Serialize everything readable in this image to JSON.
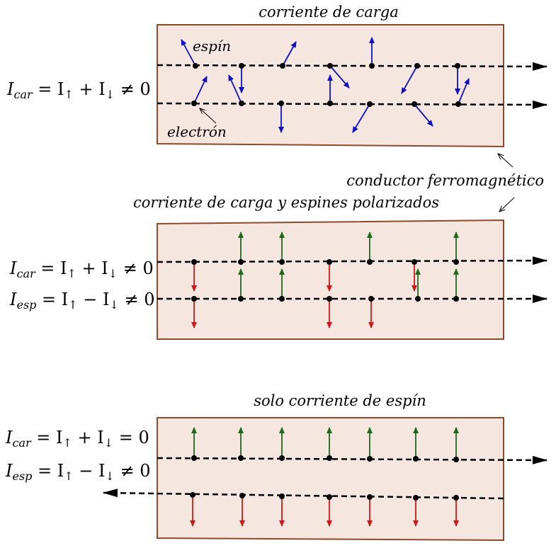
{
  "panel1": {
    "title": "corriente de carga",
    "spin_label": "espín",
    "electron_label": "electrón",
    "equation": {
      "main": "I",
      "sub": "car",
      "rest1": " = I",
      "up": "↑",
      "rest2": " + I",
      "down": "↓",
      "rest3": " ≠ 0"
    }
  },
  "middle_label": "conductor ferromagnético",
  "panel2": {
    "title": "corriente de carga y espines polarizados",
    "eq1": {
      "main": "I",
      "sub": "car",
      "rest1": " = I",
      "up": "↑",
      "rest2": " + I",
      "down": "↓",
      "rest3": " ≠ 0"
    },
    "eq2": {
      "main": "I",
      "sub": "esp",
      "rest1": " = I",
      "up": "↑",
      "rest2": " − I",
      "down": "↓",
      "rest3": " ≠ 0"
    }
  },
  "panel3": {
    "title": "solo corriente de espín",
    "eq1": {
      "main": "I",
      "sub": "car",
      "rest1": " = I",
      "up": "↑",
      "rest2": " + I",
      "down": "↓",
      "rest3": " = 0"
    },
    "eq2": {
      "main": "I",
      "sub": "esp",
      "rest1": " = I",
      "up": "↑",
      "rest2": " − I",
      "down": "↓",
      "rest3": " ≠ 0"
    }
  },
  "colors": {
    "panel_fill": "#f6e6e0",
    "panel_stroke": "#8b4a2b",
    "spin_blue": "#1010c8",
    "spin_green": "#1a6a1a",
    "spin_red": "#d01818"
  }
}
